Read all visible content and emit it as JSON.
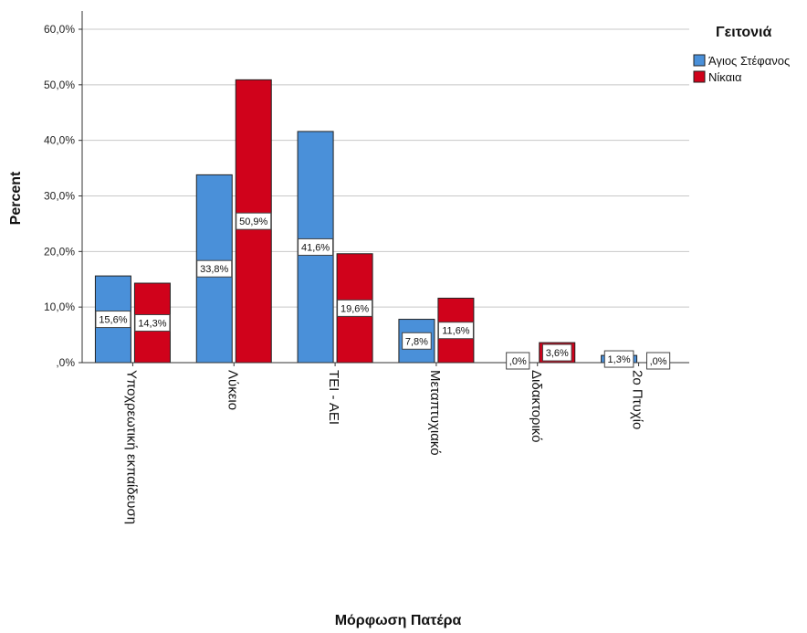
{
  "chart_data": {
    "type": "bar",
    "xlabel": "Μόρφωση Πατέρα",
    "ylabel": "Percent",
    "ylim": [
      0,
      60
    ],
    "yticks": [
      "60,0%",
      "50,0%",
      "40,0%",
      "30,0%",
      "20,0%",
      "10,0%",
      ",0%"
    ],
    "ytick_values": [
      60,
      50,
      40,
      30,
      20,
      10,
      0
    ],
    "grid": true,
    "legend_title": "Γειτονιά",
    "legend_position": "top-right",
    "categories": [
      "Υποχρεωτική εκπαίδευση",
      "Λύκειο",
      "ΤΕΙ - ΑΕΙ",
      "Μεταπτυχιακό",
      "Διδακτορικό",
      "2ο Πτυχίο"
    ],
    "series": [
      {
        "name": "Άγιος Στέφανος",
        "color": "#4a90d9",
        "values": [
          15.6,
          33.8,
          41.6,
          7.8,
          0,
          1.3
        ],
        "labels": [
          "15,6%",
          "33,8%",
          "41,6%",
          "7,8%",
          ",0%",
          "1,3%"
        ]
      },
      {
        "name": "Νίκαια",
        "color": "#d0021b",
        "values": [
          14.3,
          50.9,
          19.6,
          11.6,
          3.6,
          0
        ],
        "labels": [
          "14,3%",
          "50,9%",
          "19,6%",
          "11,6%",
          "3,6%",
          ",0%"
        ]
      }
    ]
  }
}
